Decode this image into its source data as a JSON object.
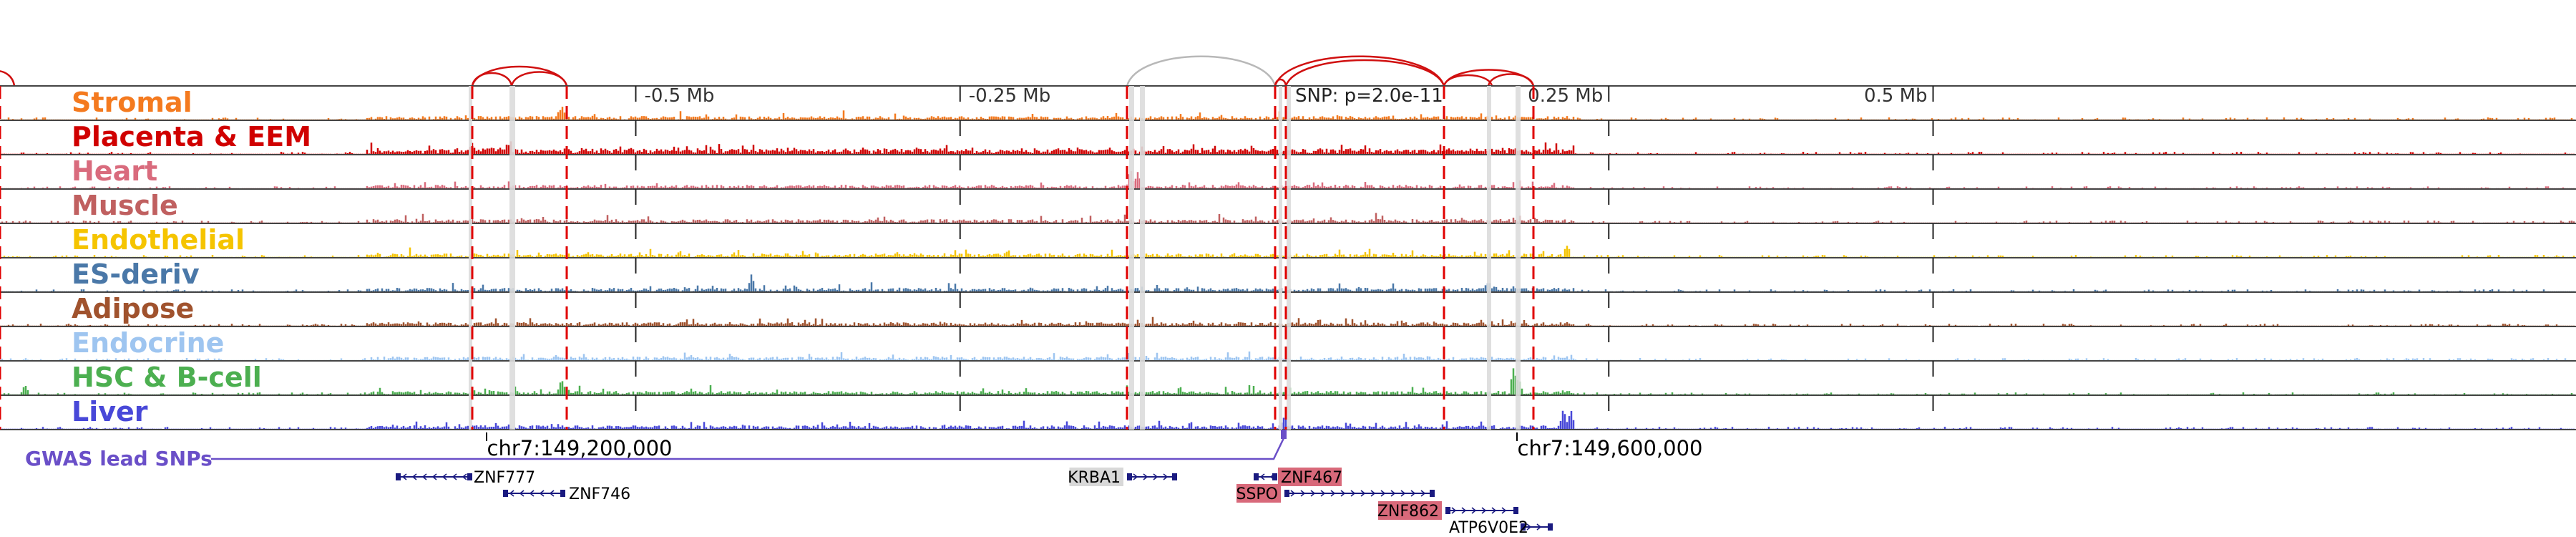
{
  "axis": {
    "ticks": [
      {
        "label": "-0.5 Mb",
        "pos": -0.5
      },
      {
        "label": "-0.25 Mb",
        "pos": -0.25
      },
      {
        "label": "0.25 Mb",
        "pos": 0.25
      },
      {
        "label": "0.5 Mb",
        "pos": 0.5
      }
    ],
    "snp_label": "SNP: p=2.0e-11"
  },
  "tracks": [
    {
      "label": "Stromal",
      "color": "#f47a1f"
    },
    {
      "label": "Placenta & EEM",
      "color": "#d00000"
    },
    {
      "label": "Heart",
      "color": "#d96b7d"
    },
    {
      "label": "Muscle",
      "color": "#c06060"
    },
    {
      "label": "Endothelial",
      "color": "#f5c400"
    },
    {
      "label": "ES-deriv",
      "color": "#4a78a8"
    },
    {
      "label": "Adipose",
      "color": "#a0522d"
    },
    {
      "label": "Endocrine",
      "color": "#9ec5f0"
    },
    {
      "label": "HSC & B-cell",
      "color": "#4caf50"
    },
    {
      "label": "Liver",
      "color": "#4848d8"
    }
  ],
  "gwas": {
    "label": "GWAS lead SNPs",
    "color": "#6a4fc8"
  },
  "coordinates": [
    {
      "label": "chr7:149,200,000"
    },
    {
      "label": "chr7:149,600,000"
    }
  ],
  "genes": [
    {
      "name": "ZNF777",
      "highlight": ""
    },
    {
      "name": "ZNF746",
      "highlight": ""
    },
    {
      "name": "KRBA1",
      "highlight": "#d8d8d8"
    },
    {
      "name": "ZNF467",
      "highlight": "#d8697a"
    },
    {
      "name": "SSPO",
      "highlight": "#d8697a"
    },
    {
      "name": "ZNF862",
      "highlight": "#d8697a"
    },
    {
      "name": "ATP6V0E2",
      "highlight": ""
    }
  ],
  "colors": {
    "loop_red": "#d01010",
    "loop_gray": "#b8b8b8",
    "dashed_red": "#e00000",
    "gene_blue": "#1a1a80",
    "track_border": "#444444"
  }
}
